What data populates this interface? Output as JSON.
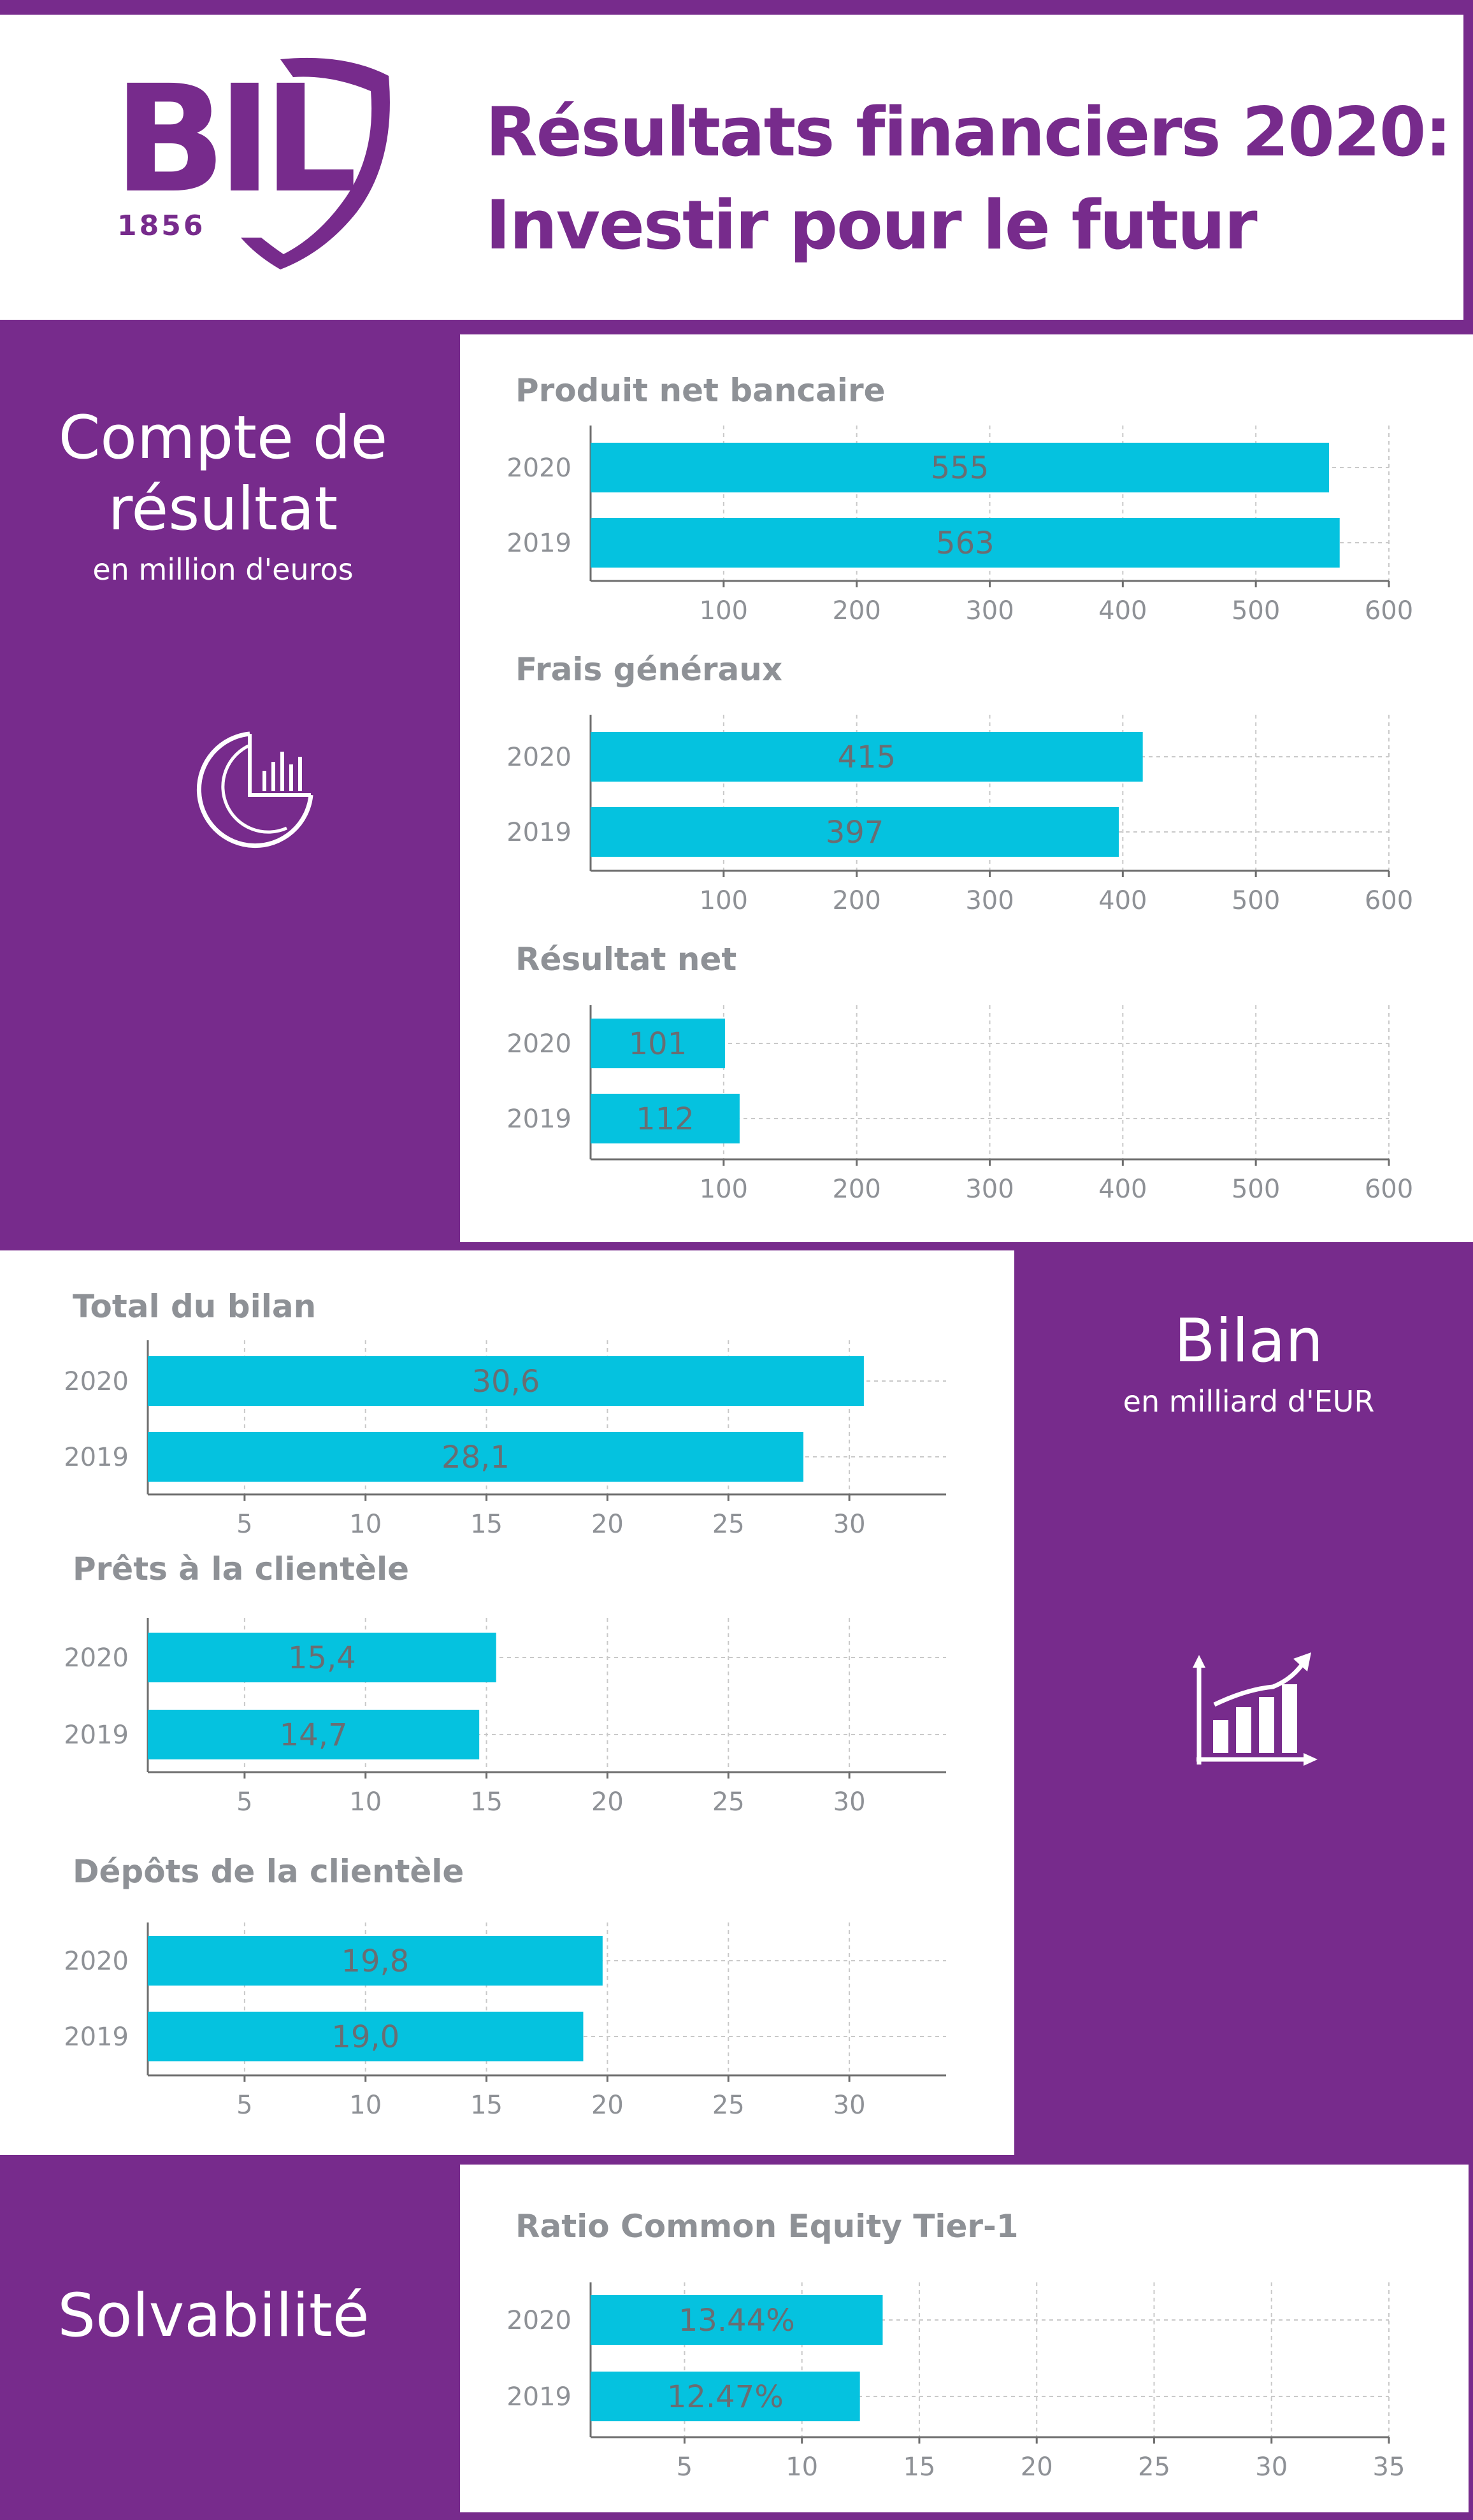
{
  "header": {
    "logo_text": "BIL",
    "logo_year": "1856",
    "title_line1": "Résultats financiers 2020:",
    "title_line2": "Investir pour le futur"
  },
  "sections": {
    "compte": {
      "title_line1": "Compte de",
      "title_line2": "résultat",
      "subtitle": "en million d'euros",
      "icon": "pie-chart-icon"
    },
    "bilan": {
      "title": "Bilan",
      "subtitle": "en milliard d'EUR",
      "icon": "bar-growth-icon"
    },
    "solvabilite": {
      "title": "Solvabilité"
    }
  },
  "colors": {
    "brand": "#772b8c",
    "bar": "#05c2df",
    "text_gray": "#8e9196"
  },
  "chart_data": [
    {
      "type": "bar",
      "orientation": "horizontal",
      "title": "Produit net bancaire",
      "categories": [
        "2020",
        "2019"
      ],
      "values": [
        555,
        563
      ],
      "value_labels": [
        "555",
        "563"
      ],
      "xlim": [
        0,
        600
      ],
      "ticks": [
        100,
        200,
        300,
        400,
        500,
        600
      ],
      "tick_labels": [
        "100",
        "200",
        "300",
        "400",
        "500",
        "600"
      ],
      "grid": true
    },
    {
      "type": "bar",
      "orientation": "horizontal",
      "title": "Frais généraux",
      "categories": [
        "2020",
        "2019"
      ],
      "values": [
        415,
        397
      ],
      "value_labels": [
        "415",
        "397"
      ],
      "xlim": [
        0,
        600
      ],
      "ticks": [
        100,
        200,
        300,
        400,
        500,
        600
      ],
      "tick_labels": [
        "100",
        "200",
        "300",
        "400",
        "500",
        "600"
      ],
      "grid": true
    },
    {
      "type": "bar",
      "orientation": "horizontal",
      "title": "Résultat net",
      "categories": [
        "2020",
        "2019"
      ],
      "values": [
        101,
        112
      ],
      "value_labels": [
        "101",
        "112"
      ],
      "xlim": [
        0,
        600
      ],
      "ticks": [
        100,
        200,
        300,
        400,
        500,
        600
      ],
      "tick_labels": [
        "100",
        "200",
        "300",
        "400",
        "500",
        "600"
      ],
      "grid": true
    },
    {
      "type": "bar",
      "orientation": "horizontal",
      "title": "Total du bilan",
      "categories": [
        "2020",
        "2019"
      ],
      "values": [
        30.6,
        28.1
      ],
      "value_labels": [
        "30,6",
        "28,1"
      ],
      "xlim": [
        1,
        34
      ],
      "ticks": [
        5,
        10,
        15,
        20,
        25,
        30
      ],
      "tick_labels": [
        "5",
        "10",
        "15",
        "20",
        "25",
        "30"
      ],
      "grid": true
    },
    {
      "type": "bar",
      "orientation": "horizontal",
      "title": "Prêts à la clientèle",
      "categories": [
        "2020",
        "2019"
      ],
      "values": [
        15.4,
        14.7
      ],
      "value_labels": [
        "15,4",
        "14,7"
      ],
      "xlim": [
        1,
        34
      ],
      "ticks": [
        5,
        10,
        15,
        20,
        25,
        30
      ],
      "tick_labels": [
        "5",
        "10",
        "15",
        "20",
        "25",
        "30"
      ],
      "grid": true
    },
    {
      "type": "bar",
      "orientation": "horizontal",
      "title": "Dépôts de la clientèle",
      "categories": [
        "2020",
        "2019"
      ],
      "values": [
        19.8,
        19.0
      ],
      "value_labels": [
        "19,8",
        "19,0"
      ],
      "xlim": [
        1,
        34
      ],
      "ticks": [
        5,
        10,
        15,
        20,
        25,
        30
      ],
      "tick_labels": [
        "5",
        "10",
        "15",
        "20",
        "25",
        "30"
      ],
      "grid": true
    },
    {
      "type": "bar",
      "orientation": "horizontal",
      "title": "Ratio Common Equity Tier-1",
      "categories": [
        "2020",
        "2019"
      ],
      "values": [
        13.44,
        12.47
      ],
      "value_labels": [
        "13.44%",
        "12.47%"
      ],
      "xlim": [
        1,
        35
      ],
      "ticks": [
        5,
        10,
        15,
        20,
        25,
        30,
        35
      ],
      "tick_labels": [
        "5",
        "10",
        "15",
        "20",
        "25",
        "30",
        "35"
      ],
      "grid": true
    }
  ]
}
